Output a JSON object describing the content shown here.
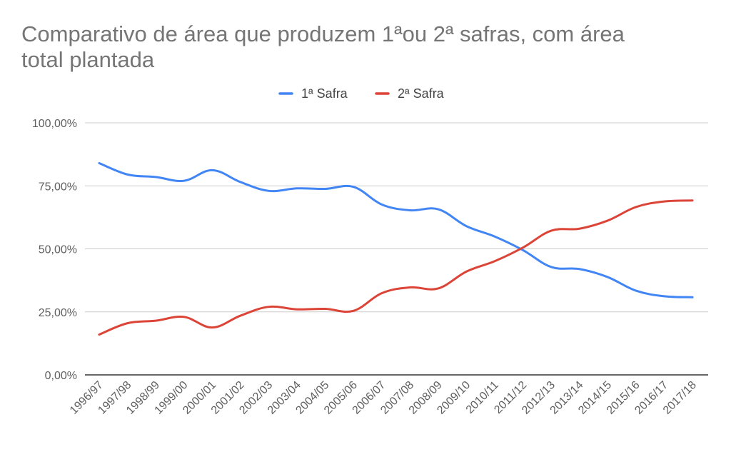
{
  "chart_data": {
    "type": "line",
    "title_lines": [
      "Comparativo de área que produzem 1ªou 2ª safras, com área",
      "total plantada"
    ],
    "xlabel": "",
    "ylabel": "",
    "ylim": [
      0,
      100
    ],
    "yticks": [
      0,
      25,
      50,
      75,
      100
    ],
    "ytick_labels": [
      "0,00%",
      "25,00%",
      "50,00%",
      "75,00%",
      "100,00%"
    ],
    "grid": true,
    "legend_position": "top-center",
    "categories": [
      "1996/97",
      "1997/98",
      "1998/99",
      "1999/00",
      "2000/01",
      "2001/02",
      "2002/03",
      "2003/04",
      "2004/05",
      "2005/06",
      "2006/07",
      "2007/08",
      "2008/09",
      "2009/10",
      "2010/11",
      "2011/12",
      "2012/13",
      "2013/14",
      "2014/15",
      "2015/16",
      "2016/17",
      "2017/18"
    ],
    "series": [
      {
        "name": "1ª Safra",
        "color": "#4285f4",
        "values": [
          84.0,
          79.5,
          78.5,
          77.0,
          81.2,
          76.5,
          73.0,
          74.0,
          73.8,
          74.6,
          67.6,
          65.3,
          65.7,
          59.0,
          54.9,
          49.5,
          42.8,
          42.0,
          38.8,
          33.4,
          31.2,
          30.8
        ]
      },
      {
        "name": "2ª Safra",
        "color": "#db4437",
        "values": [
          16.0,
          20.5,
          21.5,
          23.0,
          18.8,
          23.5,
          27.0,
          26.0,
          26.2,
          25.4,
          32.4,
          34.7,
          34.3,
          41.0,
          45.1,
          50.5,
          57.2,
          58.0,
          61.2,
          66.6,
          68.8,
          69.2
        ]
      }
    ]
  }
}
